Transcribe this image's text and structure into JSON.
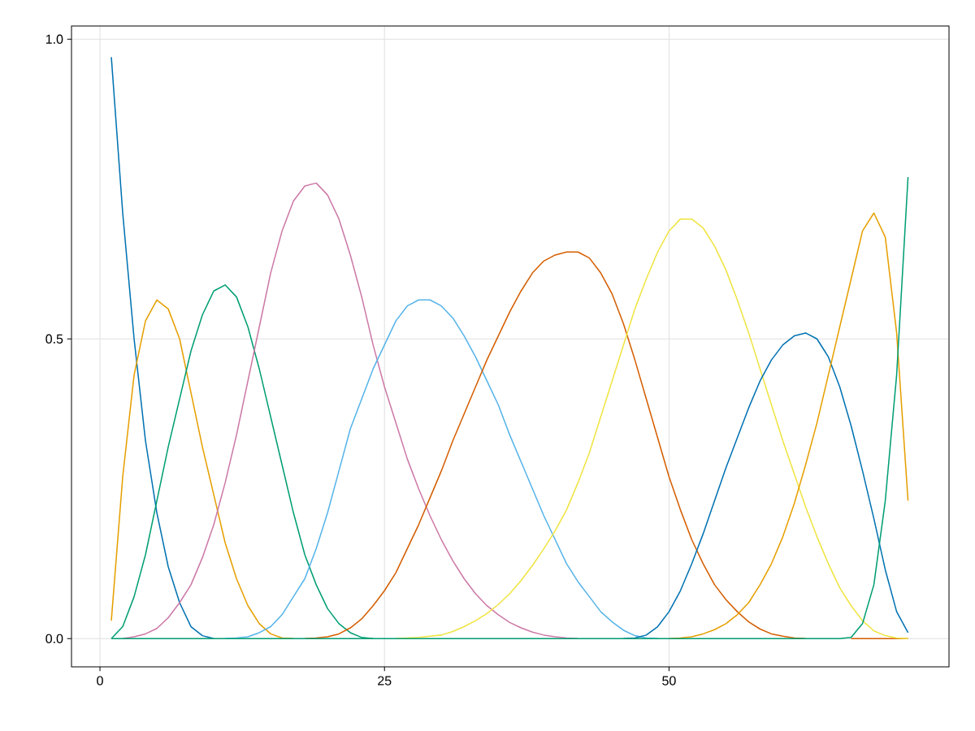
{
  "chart_data": {
    "type": "line",
    "x": [
      1,
      2,
      3,
      4,
      5,
      6,
      7,
      8,
      9,
      10,
      11,
      12,
      13,
      14,
      15,
      16,
      17,
      18,
      19,
      20,
      21,
      22,
      23,
      24,
      25,
      26,
      27,
      28,
      29,
      30,
      31,
      32,
      33,
      34,
      35,
      36,
      37,
      38,
      39,
      40,
      41,
      42,
      43,
      44,
      45,
      46,
      47,
      48,
      49,
      50,
      51,
      52,
      53,
      54,
      55,
      56,
      57,
      58,
      59,
      60,
      61,
      62,
      63,
      64,
      65,
      66,
      67,
      68,
      69,
      70,
      71
    ],
    "series": [
      {
        "color": "#0072b2",
        "values": [
          0.97,
          0.71,
          0.5,
          0.33,
          0.21,
          0.12,
          0.06,
          0.02,
          0.005,
          0,
          null,
          null,
          null,
          null,
          null,
          null,
          null,
          null,
          null,
          null,
          null,
          null,
          null,
          null,
          null,
          null,
          null,
          null,
          null,
          null,
          null,
          null,
          null,
          null,
          null,
          null,
          null,
          null,
          null,
          null,
          null,
          null,
          null,
          null,
          null,
          null,
          null,
          null,
          null,
          null,
          null,
          null,
          null,
          null,
          null,
          null,
          null,
          null,
          null,
          null,
          null,
          null,
          null,
          null,
          null,
          null,
          null,
          null,
          null,
          null,
          null
        ]
      },
      {
        "color": "#e69f00",
        "values": [
          0.03,
          0.27,
          0.44,
          0.53,
          0.565,
          0.55,
          0.5,
          0.41,
          0.32,
          0.24,
          0.16,
          0.1,
          0.055,
          0.025,
          0.008,
          0.001,
          0,
          null,
          null,
          null,
          null,
          null,
          null,
          null,
          null,
          null,
          null,
          null,
          null,
          null,
          null,
          null,
          null,
          null,
          null,
          null,
          null,
          null,
          null,
          null,
          null,
          null,
          null,
          null,
          null,
          null,
          null,
          null,
          null,
          null,
          null,
          null,
          null,
          null,
          null,
          null,
          null,
          null,
          null,
          null,
          null,
          null,
          null,
          null,
          null,
          null,
          null,
          null,
          null,
          null,
          null
        ]
      },
      {
        "color": "#009e73",
        "values": [
          0,
          0.02,
          0.07,
          0.14,
          0.23,
          0.32,
          0.4,
          0.48,
          0.54,
          0.58,
          0.59,
          0.57,
          0.52,
          0.45,
          0.37,
          0.29,
          0.21,
          0.14,
          0.09,
          0.05,
          0.025,
          0.01,
          0.002,
          0,
          null,
          null,
          null,
          null,
          null,
          null,
          null,
          null,
          null,
          null,
          null,
          null,
          null,
          null,
          null,
          null,
          null,
          null,
          null,
          null,
          null,
          null,
          null,
          null,
          null,
          null,
          null,
          null,
          null,
          null,
          null,
          null,
          null,
          null,
          null,
          null,
          null,
          null,
          null,
          null,
          null,
          null,
          null,
          null,
          null,
          null,
          null
        ]
      },
      {
        "color": "#cc79a7",
        "values": [
          null,
          0,
          0.003,
          0.008,
          0.017,
          0.035,
          0.06,
          0.09,
          0.135,
          0.19,
          0.26,
          0.34,
          0.43,
          0.52,
          0.61,
          0.68,
          0.73,
          0.755,
          0.76,
          0.74,
          0.7,
          0.64,
          0.57,
          0.49,
          0.42,
          0.36,
          0.3,
          0.25,
          0.205,
          0.165,
          0.13,
          0.1,
          0.075,
          0.055,
          0.04,
          0.027,
          0.018,
          0.011,
          0.006,
          0.003,
          0.001,
          0,
          null,
          null,
          null,
          null,
          null,
          null,
          null,
          null,
          null,
          null,
          null,
          null,
          null,
          null,
          null,
          null,
          null,
          null,
          null,
          null,
          null,
          null,
          null,
          null,
          null,
          null,
          null,
          null,
          null
        ]
      },
      {
        "color": "#56b4e9",
        "values": [
          null,
          null,
          null,
          null,
          null,
          null,
          null,
          null,
          null,
          null,
          0,
          0.001,
          0.003,
          0.01,
          0.02,
          0.04,
          0.07,
          0.1,
          0.15,
          0.21,
          0.28,
          0.35,
          0.4,
          0.45,
          0.49,
          0.53,
          0.555,
          0.565,
          0.565,
          0.555,
          0.535,
          0.505,
          0.47,
          0.43,
          0.39,
          0.34,
          0.295,
          0.25,
          0.205,
          0.165,
          0.125,
          0.095,
          0.07,
          0.045,
          0.028,
          0.014,
          0.005,
          0.001,
          0,
          null,
          null,
          null,
          null,
          null,
          null,
          null,
          null,
          null,
          null,
          null,
          null,
          null,
          null,
          null,
          null,
          null,
          null,
          null,
          null,
          null,
          null
        ]
      },
      {
        "color": "#d55e00",
        "values": [
          null,
          null,
          null,
          null,
          null,
          null,
          null,
          null,
          null,
          null,
          null,
          null,
          null,
          null,
          null,
          null,
          null,
          0,
          0.001,
          0.003,
          0.008,
          0.018,
          0.033,
          0.055,
          0.08,
          0.11,
          0.15,
          0.19,
          0.235,
          0.28,
          0.33,
          0.375,
          0.42,
          0.465,
          0.505,
          0.545,
          0.58,
          0.61,
          0.63,
          0.64,
          0.645,
          0.645,
          0.635,
          0.61,
          0.575,
          0.525,
          0.465,
          0.4,
          0.335,
          0.27,
          0.215,
          0.165,
          0.125,
          0.09,
          0.065,
          0.045,
          0.028,
          0.016,
          0.008,
          0.004,
          0.001,
          0,
          null,
          null,
          null,
          0,
          0,
          0,
          0,
          0,
          0
        ]
      },
      {
        "color": "#f0e442",
        "values": [
          null,
          null,
          null,
          null,
          null,
          null,
          null,
          null,
          null,
          null,
          null,
          null,
          null,
          null,
          null,
          null,
          null,
          null,
          null,
          null,
          null,
          null,
          null,
          null,
          null,
          0,
          0.001,
          0.002,
          0.004,
          0.006,
          0.012,
          0.02,
          0.03,
          0.042,
          0.057,
          0.075,
          0.097,
          0.122,
          0.15,
          0.18,
          0.215,
          0.26,
          0.31,
          0.37,
          0.43,
          0.49,
          0.55,
          0.6,
          0.645,
          0.68,
          0.7,
          0.7,
          0.685,
          0.655,
          0.615,
          0.565,
          0.51,
          0.45,
          0.39,
          0.33,
          0.275,
          0.22,
          0.17,
          0.125,
          0.085,
          0.055,
          0.03,
          0.013,
          0.005,
          0.001,
          0
        ]
      },
      {
        "color": "#0072b2",
        "values": [
          null,
          null,
          null,
          null,
          null,
          null,
          null,
          null,
          null,
          null,
          null,
          null,
          null,
          null,
          null,
          null,
          null,
          null,
          null,
          null,
          null,
          null,
          null,
          null,
          null,
          null,
          null,
          null,
          null,
          null,
          null,
          null,
          null,
          null,
          null,
          null,
          null,
          null,
          null,
          null,
          null,
          null,
          null,
          null,
          null,
          0,
          0.001,
          0.006,
          0.02,
          0.045,
          0.08,
          0.125,
          0.175,
          0.23,
          0.285,
          0.335,
          0.385,
          0.43,
          0.465,
          0.49,
          0.505,
          0.51,
          0.5,
          0.47,
          0.42,
          0.355,
          0.28,
          0.2,
          0.115,
          0.045,
          0.01
        ]
      },
      {
        "color": "#e69f00",
        "values": [
          null,
          null,
          null,
          null,
          null,
          null,
          null,
          null,
          null,
          null,
          null,
          null,
          null,
          null,
          null,
          null,
          null,
          null,
          null,
          null,
          null,
          null,
          null,
          null,
          null,
          null,
          null,
          null,
          null,
          null,
          null,
          null,
          null,
          null,
          null,
          null,
          null,
          null,
          null,
          null,
          null,
          null,
          null,
          null,
          null,
          null,
          null,
          null,
          null,
          0,
          0.001,
          0.003,
          0.008,
          0.015,
          0.025,
          0.04,
          0.06,
          0.09,
          0.125,
          0.17,
          0.225,
          0.29,
          0.36,
          0.44,
          0.52,
          0.6,
          0.68,
          0.71,
          0.67,
          0.51,
          0.23
        ]
      },
      {
        "color": "#009e73",
        "values": [
          0,
          0,
          0,
          0,
          0,
          0,
          0,
          0,
          0,
          0,
          0,
          0,
          0,
          0,
          0,
          0,
          0,
          0,
          0,
          0,
          0,
          0,
          0,
          0,
          0,
          0,
          0,
          0,
          0,
          0,
          0,
          0,
          0,
          0,
          0,
          0,
          0,
          0,
          0,
          0,
          0,
          0,
          0,
          0,
          0,
          0,
          0,
          0,
          0,
          0,
          0,
          0,
          0,
          0,
          0,
          0,
          0,
          0,
          0,
          0,
          0,
          0,
          0,
          0,
          0,
          0.002,
          0.025,
          0.09,
          0.23,
          0.44,
          0.77
        ]
      }
    ],
    "xlim": [
      -2.5,
      74.6
    ],
    "ylim": [
      -0.047,
      1.022
    ],
    "xticks": [
      0,
      25,
      50
    ],
    "yticks": [
      {
        "value": 0,
        "label": "0.0"
      },
      {
        "value": 0.5,
        "label": "0.5"
      },
      {
        "value": 1,
        "label": "1.0"
      }
    ],
    "grid": true
  }
}
